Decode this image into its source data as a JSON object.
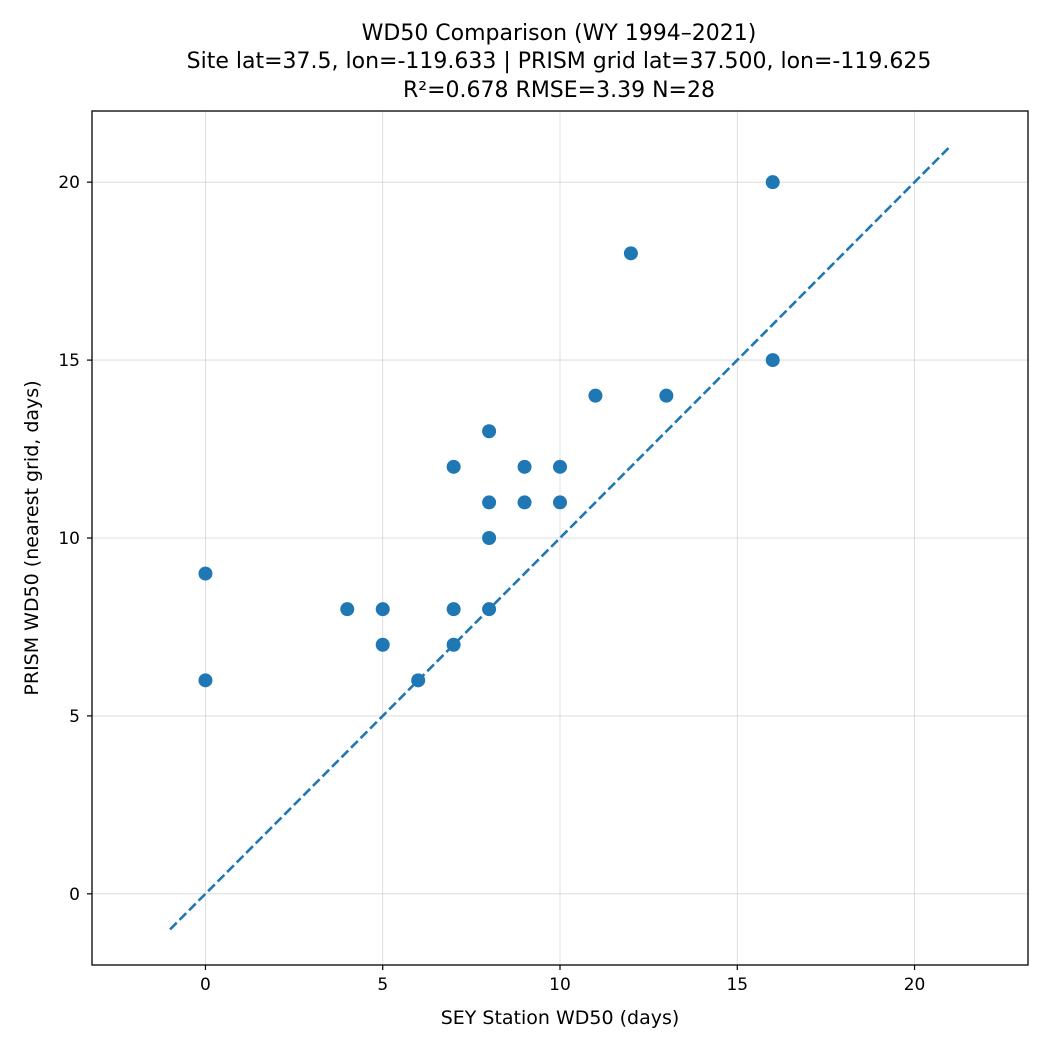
{
  "chart_data": {
    "type": "scatter",
    "title_lines": [
      "WD50 Comparison (WY 1994–2021)",
      "Site lat=37.5, lon=-119.633 | PRISM grid lat=37.500, lon=-119.625",
      "R²=0.678  RMSE=3.39  N=28"
    ],
    "xlabel": "SEY Station WD50 (days)",
    "ylabel": "PRISM WD50 (nearest grid, days)",
    "xlim": [
      -3.2,
      23.2
    ],
    "ylim": [
      -2.0,
      22.0
    ],
    "xticks": [
      0,
      5,
      10,
      15,
      20
    ],
    "yticks": [
      0,
      5,
      10,
      15,
      20
    ],
    "grid": true,
    "point_color": "#1f77b4",
    "reference_line": {
      "style": "dashed",
      "color": "#1f77b4",
      "x": [
        -1,
        21
      ],
      "y": [
        -1,
        21
      ]
    },
    "points": [
      {
        "x": 0,
        "y": 9
      },
      {
        "x": 0,
        "y": 6
      },
      {
        "x": 4,
        "y": 8
      },
      {
        "x": 5,
        "y": 8
      },
      {
        "x": 5,
        "y": 7
      },
      {
        "x": 6,
        "y": 6
      },
      {
        "x": 7,
        "y": 12
      },
      {
        "x": 7,
        "y": 8
      },
      {
        "x": 7,
        "y": 7
      },
      {
        "x": 8,
        "y": 13
      },
      {
        "x": 8,
        "y": 11
      },
      {
        "x": 8,
        "y": 10
      },
      {
        "x": 8,
        "y": 8
      },
      {
        "x": 9,
        "y": 12
      },
      {
        "x": 9,
        "y": 11
      },
      {
        "x": 10,
        "y": 12
      },
      {
        "x": 10,
        "y": 11
      },
      {
        "x": 11,
        "y": 14
      },
      {
        "x": 12,
        "y": 18
      },
      {
        "x": 13,
        "y": 14
      },
      {
        "x": 16,
        "y": 20
      },
      {
        "x": 16,
        "y": 15
      }
    ]
  }
}
